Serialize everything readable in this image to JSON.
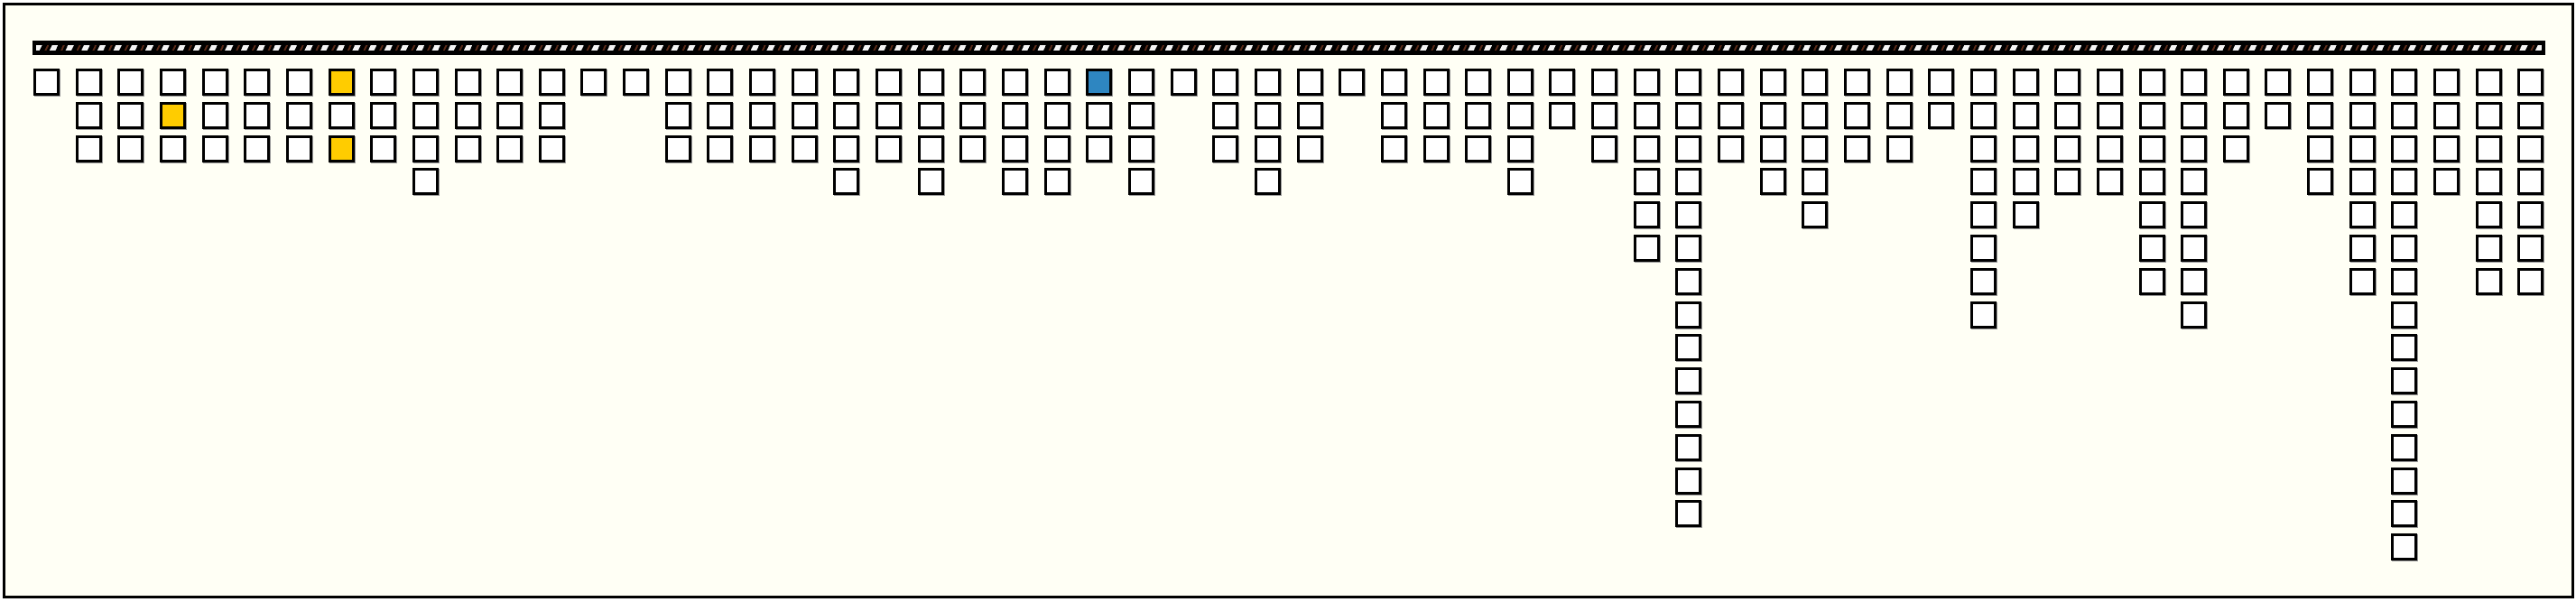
{
  "colors": {
    "background": "#fffff5",
    "cell_fill": "#ffffff",
    "cell_border": "#000000",
    "highlight_yellow": "#ffcc00",
    "highlight_blue": "#2e86c1"
  },
  "columns": [
    {
      "cells": 1
    },
    {
      "cells": 3
    },
    {
      "cells": 3
    },
    {
      "cells": 3,
      "highlights": {
        "1": "highlight_yellow"
      }
    },
    {
      "cells": 3
    },
    {
      "cells": 3
    },
    {
      "cells": 3
    },
    {
      "cells": 3,
      "highlights": {
        "0": "highlight_yellow",
        "2": "highlight_yellow"
      }
    },
    {
      "cells": 3
    },
    {
      "cells": 4
    },
    {
      "cells": 3
    },
    {
      "cells": 3
    },
    {
      "cells": 3
    },
    {
      "cells": 1
    },
    {
      "cells": 1
    },
    {
      "cells": 3
    },
    {
      "cells": 3
    },
    {
      "cells": 3
    },
    {
      "cells": 3
    },
    {
      "cells": 4
    },
    {
      "cells": 3
    },
    {
      "cells": 4
    },
    {
      "cells": 3
    },
    {
      "cells": 4
    },
    {
      "cells": 4
    },
    {
      "cells": 3,
      "highlights": {
        "0": "highlight_blue"
      }
    },
    {
      "cells": 4
    },
    {
      "cells": 1
    },
    {
      "cells": 3
    },
    {
      "cells": 4
    },
    {
      "cells": 3
    },
    {
      "cells": 1
    },
    {
      "cells": 3
    },
    {
      "cells": 3
    },
    {
      "cells": 3
    },
    {
      "cells": 4
    },
    {
      "cells": 2
    },
    {
      "cells": 3
    },
    {
      "cells": 6
    },
    {
      "cells": 14
    },
    {
      "cells": 3
    },
    {
      "cells": 4
    },
    {
      "cells": 5
    },
    {
      "cells": 3
    },
    {
      "cells": 3
    },
    {
      "cells": 2
    },
    {
      "cells": 8
    },
    {
      "cells": 5
    },
    {
      "cells": 4
    },
    {
      "cells": 4
    },
    {
      "cells": 7
    },
    {
      "cells": 8
    },
    {
      "cells": 3
    },
    {
      "cells": 2
    },
    {
      "cells": 4
    },
    {
      "cells": 7
    },
    {
      "cells": 15
    },
    {
      "cells": 4
    },
    {
      "cells": 7
    },
    {
      "cells": 7
    }
  ]
}
